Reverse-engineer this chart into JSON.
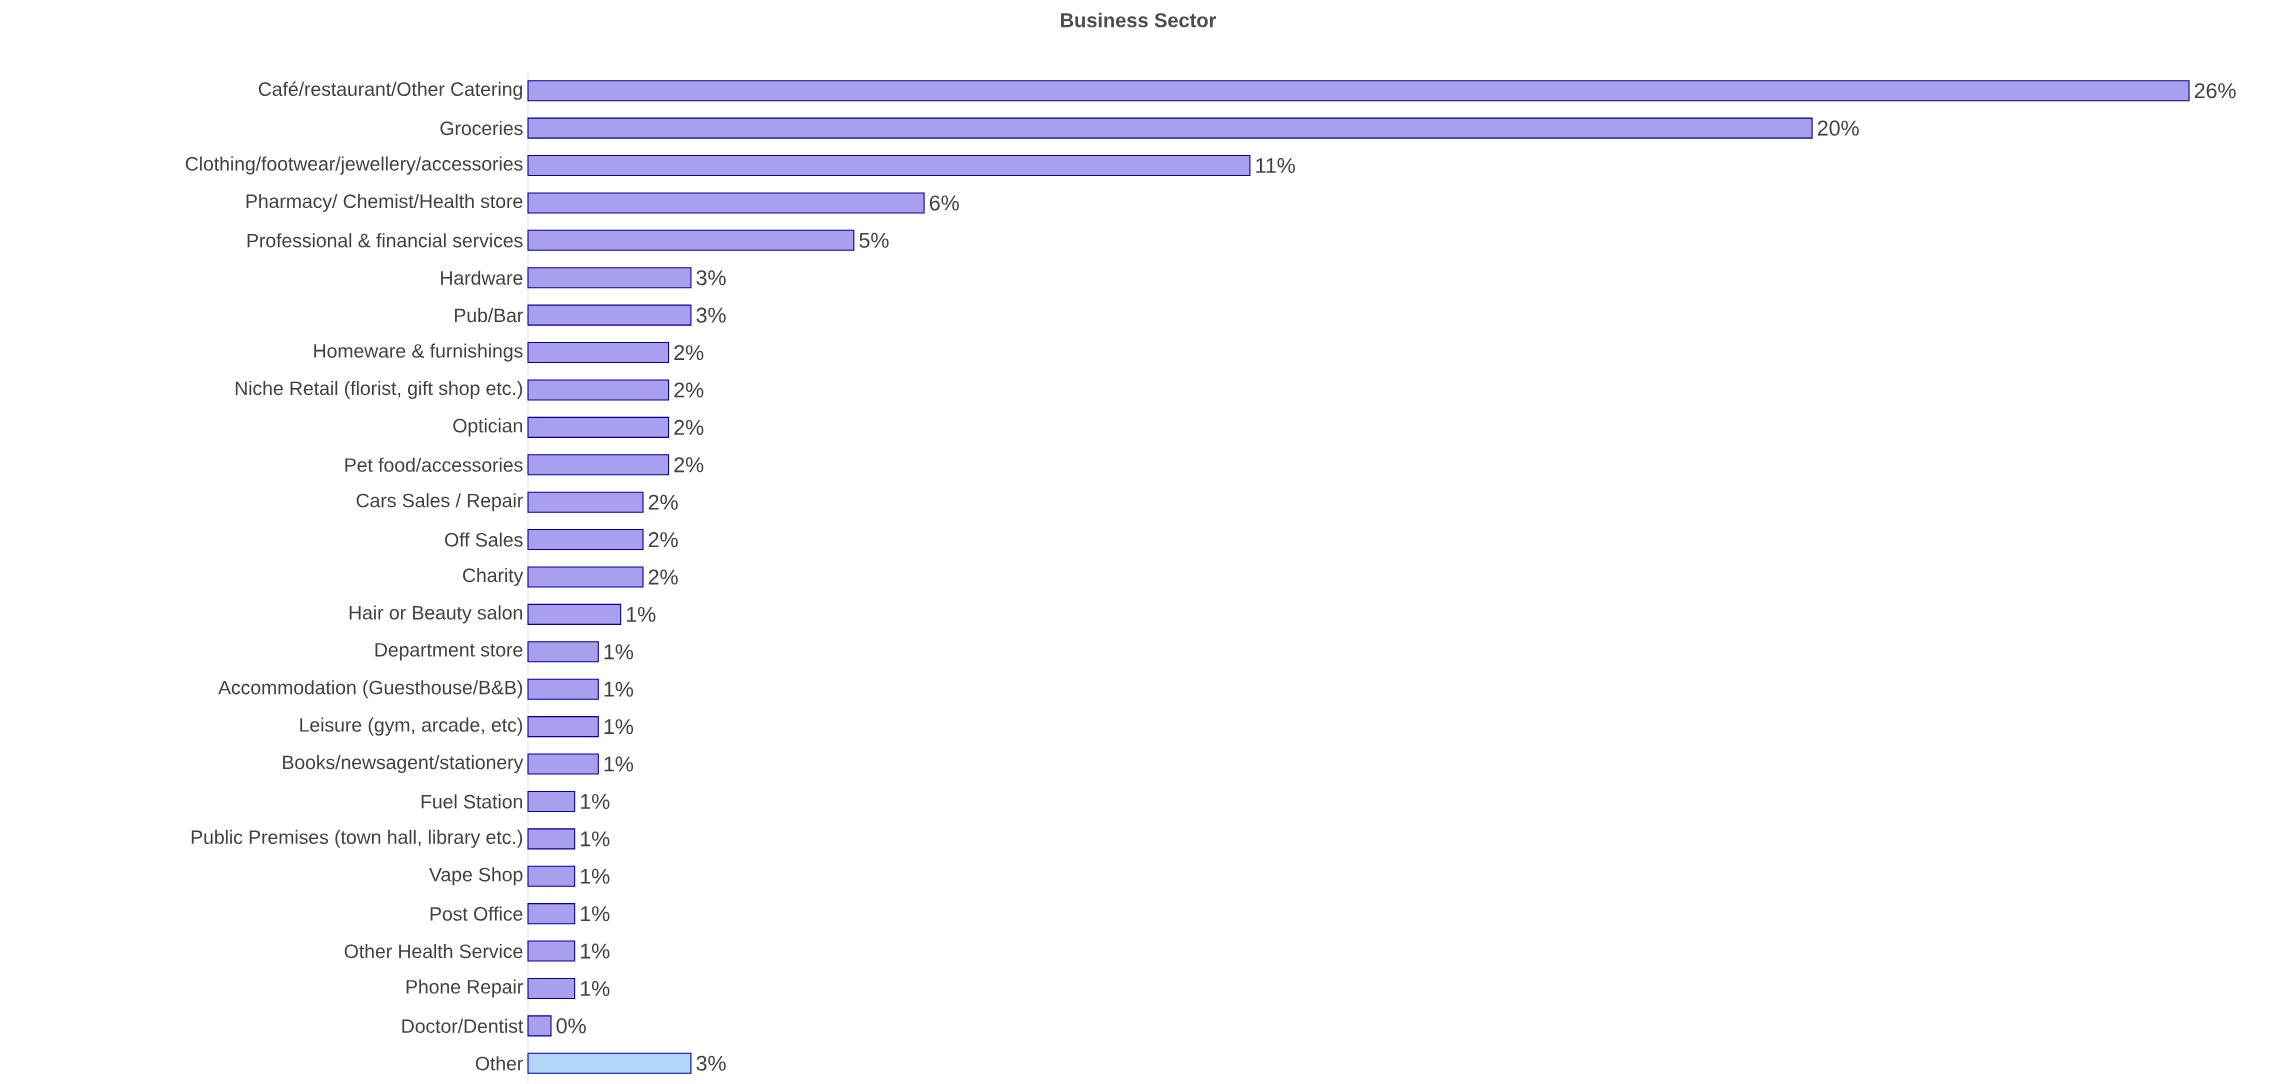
{
  "chart_data": {
    "type": "bar",
    "orientation": "horizontal",
    "title": "Business Sector",
    "categories": [
      "Café/restaurant/Other Catering",
      "Groceries",
      "Clothing/footwear/jewellery/accessories",
      "Pharmacy/ Chemist/Health store",
      "Professional & financial services",
      "Hardware",
      "Pub/Bar",
      "Homeware & furnishings",
      "Niche Retail (florist, gift shop etc.)",
      "Optician",
      "Pet food/accessories",
      "Cars Sales / Repair",
      "Off Sales",
      "Charity",
      "Hair or Beauty salon",
      "Department store",
      "Accommodation (Guesthouse/B&B)",
      "Leisure (gym, arcade, etc)",
      "Books/newsagent/stationery",
      "Fuel Station",
      "Public Premises (town hall, library etc.)",
      "Vape Shop",
      "Post Office",
      "Other Health Service",
      "Phone Repair",
      "Doctor/Dentist",
      "Other"
    ],
    "values": [
      26,
      20.1,
      11.3,
      6.2,
      5.1,
      2.55,
      2.55,
      2.2,
      2.2,
      2.2,
      2.2,
      1.8,
      1.8,
      1.8,
      1.45,
      1.1,
      1.1,
      1.1,
      1.1,
      0.73,
      0.73,
      0.73,
      0.73,
      0.73,
      0.73,
      0.36,
      2.55
    ],
    "value_labels": [
      "26%",
      "20%",
      "11%",
      "6%",
      "5%",
      "3%",
      "3%",
      "2%",
      "2%",
      "2%",
      "2%",
      "2%",
      "2%",
      "2%",
      "1%",
      "1%",
      "1%",
      "1%",
      "1%",
      "1%",
      "1%",
      "1%",
      "1%",
      "1%",
      "1%",
      "0%",
      "3%"
    ],
    "colors": [
      "#aa9fec",
      "#aa9fec",
      "#aa9fec",
      "#aa9fec",
      "#aa9fec",
      "#aa9fec",
      "#aa9fec",
      "#aa9fec",
      "#aa9fec",
      "#aa9fec",
      "#aa9fec",
      "#aa9fec",
      "#aa9fec",
      "#aa9fec",
      "#aa9fec",
      "#aa9fec",
      "#aa9fec",
      "#aa9fec",
      "#aa9fec",
      "#aa9fec",
      "#aa9fec",
      "#aa9fec",
      "#aa9fec",
      "#aa9fec",
      "#aa9fec",
      "#aa9fec",
      "#b4d6f6"
    ]
  }
}
